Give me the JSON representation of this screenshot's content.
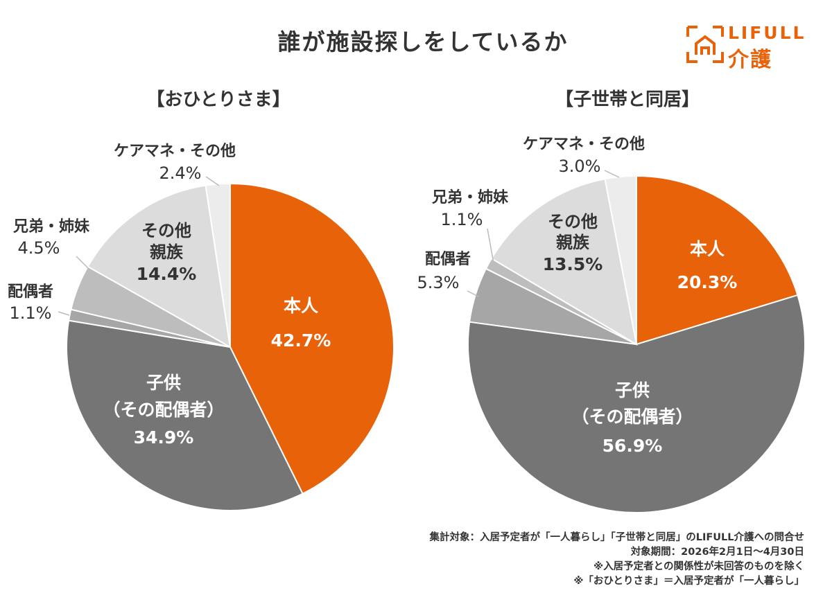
{
  "title": "誰が施設探しをしているか",
  "logo": {
    "en": "LIFULL",
    "ja": "介護",
    "color": "#e8620a"
  },
  "colors": {
    "self": "#e8620a",
    "child": "#757575",
    "spouse": "#a6a6a6",
    "sibling": "#bdbdbd",
    "relatives": "#dcdcdc",
    "caremanager": "#ececec"
  },
  "chart_data": [
    {
      "type": "pie",
      "title": "【おひとりさま】",
      "labels": [
        "本人",
        "子供（その配偶者）",
        "配偶者",
        "兄弟・姉妹",
        "その他親族",
        "ケアマネ・その他"
      ],
      "values": [
        42.7,
        34.9,
        1.1,
        4.5,
        14.4,
        2.4
      ],
      "display": [
        "42.7%",
        "34.9%",
        "1.1%",
        "4.5%",
        "14.4%",
        "2.4%"
      ]
    },
    {
      "type": "pie",
      "title": "【子世帯と同居】",
      "labels": [
        "本人",
        "子供（その配偶者）",
        "配偶者",
        "兄弟・姉妹",
        "その他親族",
        "ケアマネ・その他"
      ],
      "values": [
        20.3,
        56.9,
        5.3,
        1.1,
        13.5,
        3.0
      ],
      "display": [
        "20.3%",
        "56.9%",
        "5.3%",
        "1.1%",
        "13.5%",
        "3.0%"
      ]
    }
  ],
  "label_text": {
    "self": "本人",
    "child_line1": "子供",
    "child_line2": "（その配偶者）",
    "spouse": "配偶者",
    "sibling": "兄弟・姉妹",
    "relatives_line1": "その他",
    "relatives_line2": "親族",
    "caremanager": "ケアマネ・その他"
  },
  "footnotes": [
    "集計対象：入居予定者が「一人暮らし」「子世帯と同居」のLIFULL介護への問合せ",
    "対象期間：2026年2月1日～4月30日",
    "※入居予定者との関係性が未回答のものを除く",
    "※「おひとりさま」＝入居予定者が「一人暮らし」"
  ]
}
